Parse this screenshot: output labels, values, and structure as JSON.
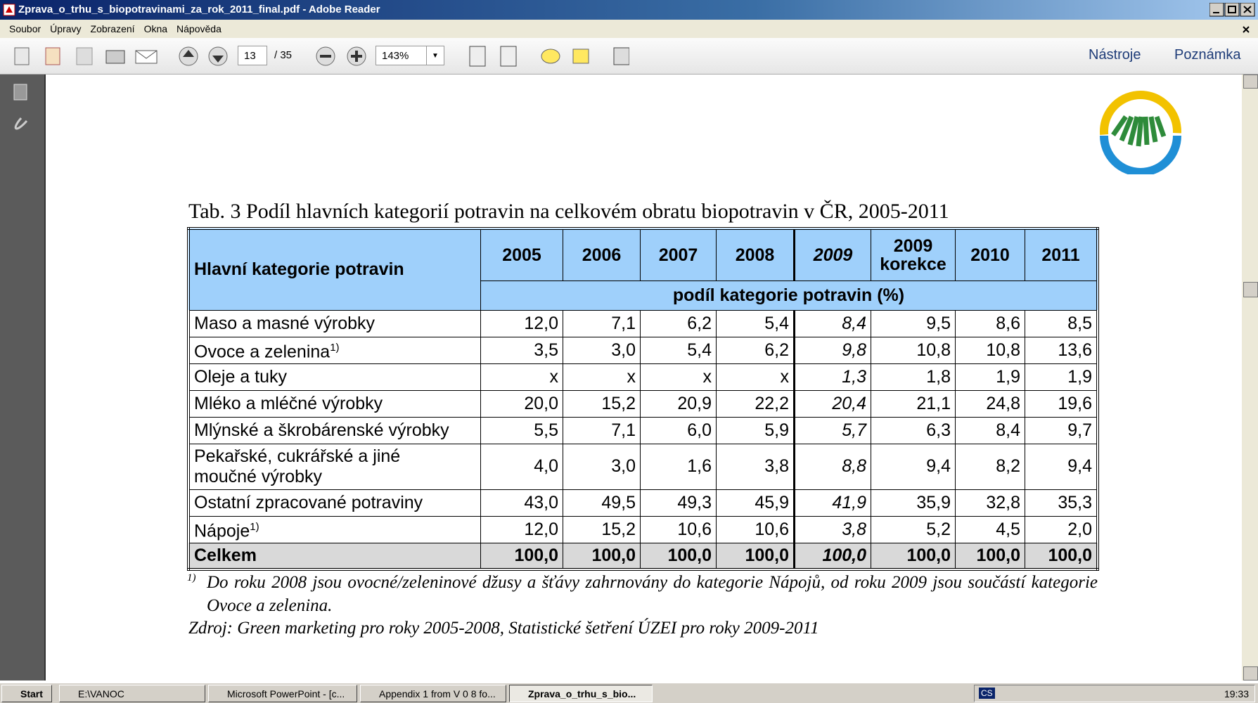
{
  "window": {
    "title": "Zprava_o_trhu_s_biopotravinami_za_rok_2011_final.pdf - Adobe Reader",
    "menu": [
      "Soubor",
      "Úpravy",
      "Zobrazení",
      "Okna",
      "Nápověda"
    ]
  },
  "toolbar": {
    "page": "13",
    "page_count": "/ 35",
    "zoom": "143%",
    "tools": "Nástroje",
    "comment": "Poznámka"
  },
  "document": {
    "caption": "Tab. 3 Podíl hlavních kategorií potravin na celkovém obratu biopotravin v ČR, 2005-2011",
    "table": {
      "header": "Hlavní kategorie potravin",
      "years": [
        "2005",
        "2006",
        "2007",
        "2008",
        "2009",
        "2009 korekce",
        "2010",
        "2011"
      ],
      "unit": "podíl kategorie potravin (%)",
      "rows": [
        {
          "label": "Maso a masné výrobky",
          "values": [
            "12,0",
            "7,1",
            "6,2",
            "5,4",
            "8,4",
            "9,5",
            "8,6",
            "8,5"
          ]
        },
        {
          "label": "Ovoce a zelenina",
          "note": "1)",
          "values": [
            "3,5",
            "3,0",
            "5,4",
            "6,2",
            "9,8",
            "10,8",
            "10,8",
            "13,6"
          ]
        },
        {
          "label": "Oleje a tuky",
          "values": [
            "x",
            "x",
            "x",
            "x",
            "1,3",
            "1,8",
            "1,9",
            "1,9"
          ]
        },
        {
          "label": "Mléko a mléčné výrobky",
          "values": [
            "20,0",
            "15,2",
            "20,9",
            "22,2",
            "20,4",
            "21,1",
            "24,8",
            "19,6"
          ]
        },
        {
          "label": "Mlýnské a škrobárenské výrobky",
          "values": [
            "5,5",
            "7,1",
            "6,0",
            "5,9",
            "5,7",
            "6,3",
            "8,4",
            "9,7"
          ]
        },
        {
          "label": [
            "Pekařské, cukrářské a jiné",
            "moučné výrobky"
          ],
          "values": [
            "4,0",
            "3,0",
            "1,6",
            "3,8",
            "8,8",
            "9,4",
            "8,2",
            "9,4"
          ]
        },
        {
          "label": "Ostatní zpracované potraviny",
          "values": [
            "43,0",
            "49,5",
            "49,3",
            "45,9",
            "41,9",
            "35,9",
            "32,8",
            "35,3"
          ]
        },
        {
          "label": "Nápoje",
          "note": "1)",
          "values": [
            "12,0",
            "15,2",
            "10,6",
            "10,6",
            "3,8",
            "5,2",
            "4,5",
            "2,0"
          ]
        }
      ],
      "total": {
        "label": "Celkem",
        "values": [
          "100,0",
          "100,0",
          "100,0",
          "100,0",
          "100,0",
          "100,0",
          "100,0",
          "100,0"
        ]
      }
    },
    "footnote": {
      "marker": "1)",
      "text": "Do roku 2008 jsou ovocné/zeleninové džusy a šťávy zahrnovány do kategorie Nápojů, od roku 2009 jsou součástí kategorie Ovoce a zelenina."
    },
    "source": "Zdroj: Green marketing pro roky 2005-2008, Statistické šetření ÚZEI pro roky 2009-2011"
  },
  "taskbar": {
    "start": "Start",
    "items": [
      "E:\\VANOC",
      "Microsoft PowerPoint - [c...",
      "Appendix 1 from V 0 8 fo...",
      "Zprava_o_trhu_s_bio..."
    ],
    "lang": "CS",
    "clock": "19:33"
  }
}
